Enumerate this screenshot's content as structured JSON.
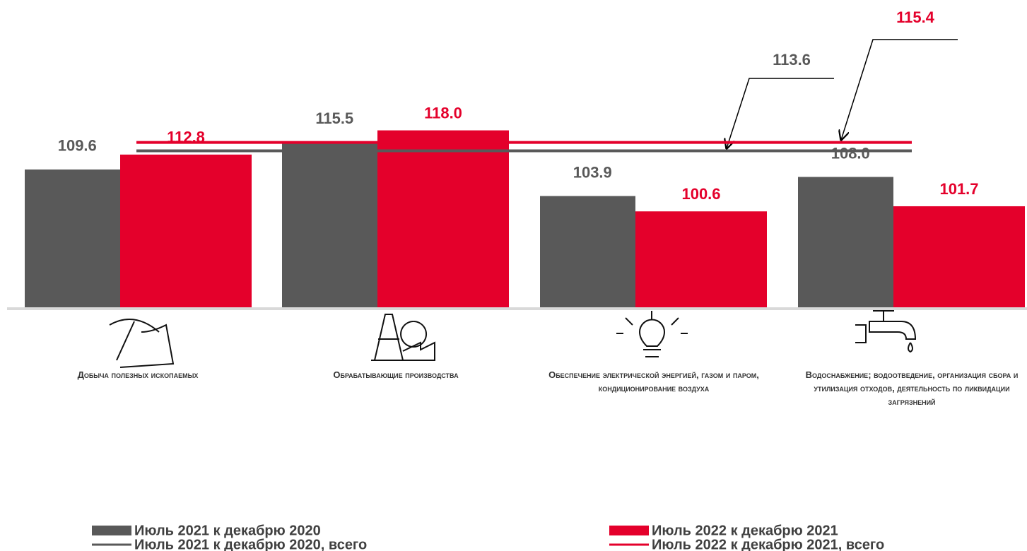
{
  "chart_data": {
    "type": "bar",
    "categories": [
      "Добыча полезных ископаемых",
      "Обрабатывающие производства",
      "Обеспечение электрической энергией, газом и паром, кондиционирование воздуха",
      "Водоснабжение; водоотведение, организация сбора и утилизация отходов, деятельность по ликвидации загрязнений"
    ],
    "series": [
      {
        "name": "Июль 2021 к декабрю 2020",
        "color": "#595959",
        "values": [
          109.6,
          115.5,
          103.9,
          108.0
        ],
        "value_labels": [
          "109.6",
          "115.5",
          "103.9",
          "108.0"
        ]
      },
      {
        "name": "Июль 2022 к декабрю 2021",
        "color": "#e4002b",
        "values": [
          112.8,
          118.0,
          100.6,
          101.7
        ],
        "value_labels": [
          "112.8",
          "118.0",
          "100.6",
          "101.7"
        ]
      }
    ],
    "reference_lines": [
      {
        "name": "Июль 2021 к декабрю 2020, всего",
        "color": "#595959",
        "value": 113.6
      },
      {
        "name": "Июль 2022 к декабрю 2021, всего",
        "color": "#e4002b",
        "value": 115.4
      }
    ],
    "ylim": [
      80,
      146
    ]
  }
}
